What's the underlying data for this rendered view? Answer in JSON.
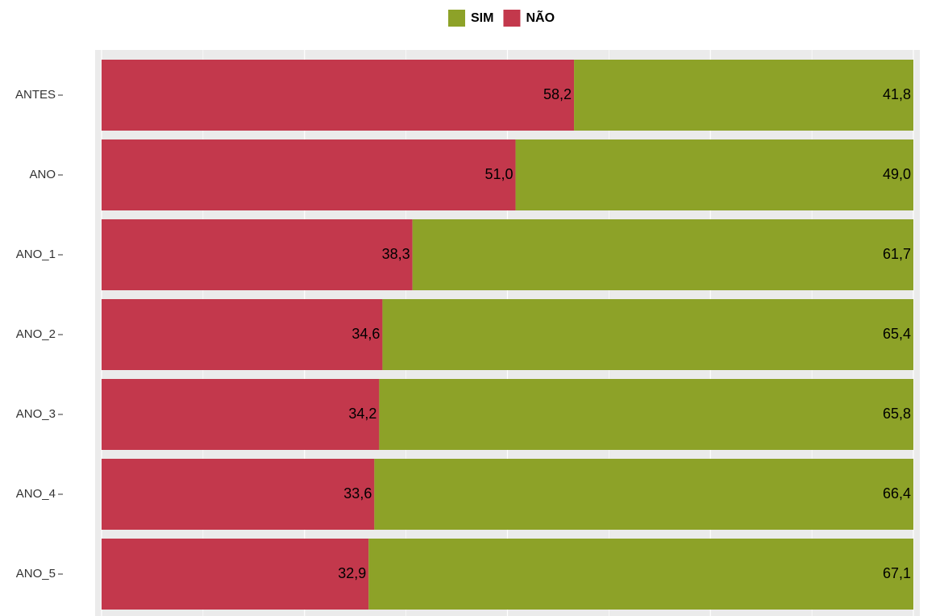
{
  "chart_data": {
    "type": "stacked-bar-horizontal",
    "categories": [
      "ANTES",
      "ANO",
      "ANO_1",
      "ANO_2",
      "ANO_3",
      "ANO_4",
      "ANO_5"
    ],
    "series": [
      {
        "name": "SIM",
        "color": "#8da228",
        "values": [
          41.8,
          49.0,
          61.7,
          65.4,
          65.8,
          66.4,
          67.1
        ],
        "value_labels": [
          "41,8",
          "49,0",
          "61,7",
          "65,4",
          "65,8",
          "66,4",
          "67,1"
        ]
      },
      {
        "name": "NÃO",
        "color": "#c3384c",
        "values": [
          58.2,
          51.0,
          38.3,
          34.6,
          34.2,
          33.6,
          32.9
        ],
        "value_labels": [
          "58,2",
          "51,0",
          "38,3",
          "34,6",
          "34,2",
          "33,6",
          "32,9"
        ]
      }
    ],
    "xlim": [
      0,
      100
    ],
    "legend": "top"
  }
}
